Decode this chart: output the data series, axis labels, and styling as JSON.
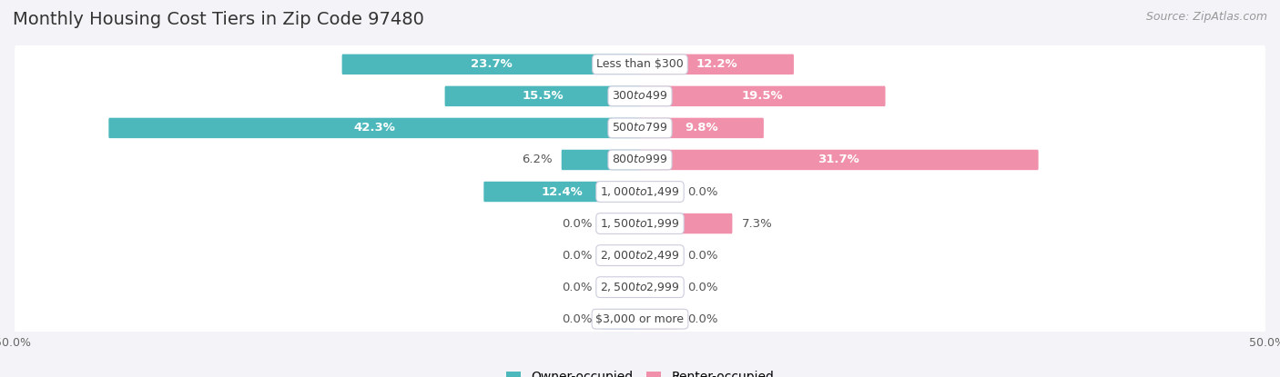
{
  "title": "Monthly Housing Cost Tiers in Zip Code 97480",
  "source": "Source: ZipAtlas.com",
  "categories": [
    "Less than $300",
    "$300 to $499",
    "$500 to $799",
    "$800 to $999",
    "$1,000 to $1,499",
    "$1,500 to $1,999",
    "$2,000 to $2,499",
    "$2,500 to $2,999",
    "$3,000 or more"
  ],
  "owner_values": [
    23.7,
    15.5,
    42.3,
    6.2,
    12.4,
    0.0,
    0.0,
    0.0,
    0.0
  ],
  "renter_values": [
    12.2,
    19.5,
    9.8,
    31.7,
    0.0,
    7.3,
    0.0,
    0.0,
    0.0
  ],
  "owner_color": "#4db8bc",
  "renter_color": "#f090aa",
  "owner_stub_color": "#a8dfe0",
  "renter_stub_color": "#f8c0d0",
  "label_dark_color": "#555555",
  "label_white_color": "#ffffff",
  "category_text_color": "#444444",
  "background_color": "#f4f4f8",
  "row_bg_color": "#ffffff",
  "row_border_color": "#ddddee",
  "axis_limit": 50.0,
  "bar_height": 0.52,
  "stub_size": 3.0,
  "title_fontsize": 14,
  "source_fontsize": 9,
  "label_fontsize": 9.5,
  "category_fontsize": 9,
  "legend_fontsize": 10,
  "axis_label_fontsize": 9,
  "inside_label_threshold": 8.0
}
